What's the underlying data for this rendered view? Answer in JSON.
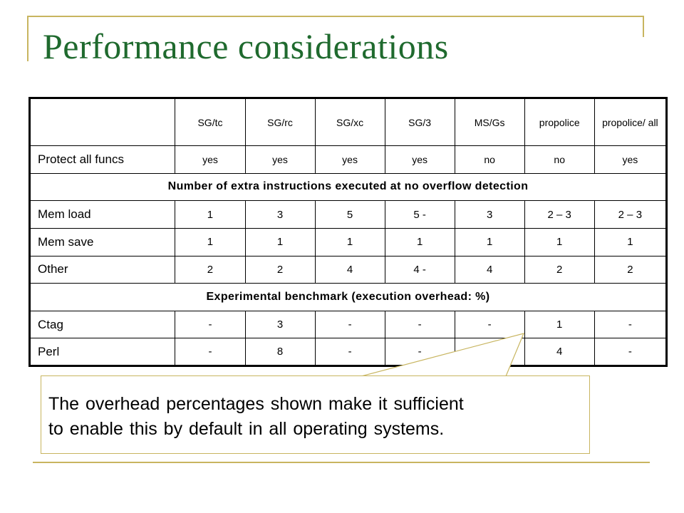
{
  "slide": {
    "title": "Performance considerations"
  },
  "table": {
    "columns": [
      "SG/tc",
      "SG/rc",
      "SG/xc",
      "SG/3",
      "MS/Gs",
      "propolice",
      "propolice/ all"
    ],
    "protect_row": {
      "label": "Protect all funcs",
      "values": [
        "yes",
        "yes",
        "yes",
        "yes",
        "no",
        "no",
        "yes"
      ]
    },
    "section1": "Number of extra instructions executed at no overflow detection",
    "instruction_rows": [
      {
        "label": "Mem load",
        "values": [
          "1",
          "3",
          "5",
          "5 -",
          "3",
          "2 – 3",
          "2 – 3"
        ]
      },
      {
        "label": "Mem save",
        "values": [
          "1",
          "1",
          "1",
          "1",
          "1",
          "1",
          "1"
        ]
      },
      {
        "label": "Other",
        "values": [
          "2",
          "2",
          "4",
          "4 -",
          "4",
          "2",
          "2"
        ]
      }
    ],
    "section2": "Experimental benchmark (execution overhead: %)",
    "benchmark_rows": [
      {
        "label": "Ctag",
        "values": [
          "-",
          "3",
          "-",
          "-",
          "-",
          "1",
          "-"
        ]
      },
      {
        "label": "Perl",
        "values": [
          "-",
          "8",
          "-",
          "-",
          "",
          "4",
          "-"
        ]
      }
    ]
  },
  "callout": {
    "line1": "The overhead percentages shown make it sufficient",
    "line2": "to enable this by default in all operating systems."
  },
  "colors": {
    "title": "#1f6a2e",
    "frame": "#c8b560"
  }
}
